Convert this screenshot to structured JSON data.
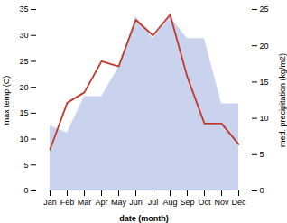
{
  "chart_data": {
    "type": "line",
    "categories": [
      "Jan",
      "Feb",
      "Mar",
      "Apr",
      "May",
      "Jun",
      "Jul",
      "Aug",
      "Sep",
      "Oct",
      "Nov",
      "Dec"
    ],
    "series": [
      {
        "type": "area",
        "color": "#b8c4e8",
        "axis": "y2",
        "values": [
          9,
          8,
          13,
          13,
          17,
          24,
          21,
          24,
          21,
          21,
          12,
          12
        ]
      },
      {
        "type": "line",
        "color": "#c0392b",
        "values": [
          8,
          17,
          19,
          25,
          24,
          33,
          30,
          34,
          22,
          13,
          13,
          9
        ]
      }
    ],
    "xlabel": "date (month)",
    "ylabel": "max temp (C)",
    "y2label": "med. precipitation (kg/m2)",
    "ylim": [
      0,
      35
    ],
    "yticks": [
      0,
      5,
      10,
      15,
      20,
      25,
      30,
      35
    ],
    "y2lim": [
      0,
      25
    ],
    "y2ticks": [
      0,
      5,
      10,
      15,
      20,
      25
    ]
  }
}
